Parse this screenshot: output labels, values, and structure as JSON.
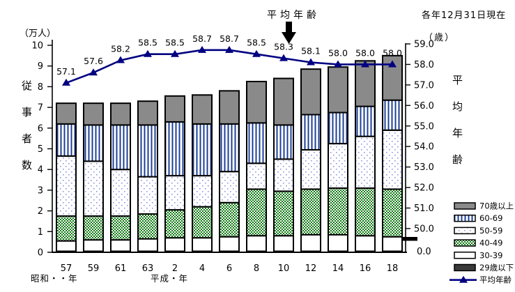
{
  "chart_data": {
    "type": "bar",
    "subtype": "stacked-bar-with-line",
    "title": "",
    "categories": [
      "57",
      "59",
      "61",
      "63",
      "2",
      "4",
      "6",
      "8",
      "10",
      "12",
      "14",
      "16",
      "18"
    ],
    "era_labels": {
      "showa": "昭和・・年",
      "heisei": "平成・年"
    },
    "series": [
      {
        "name": "29歳以下",
        "style": "dark",
        "values": [
          0.05,
          0.05,
          0.05,
          0.05,
          0.05,
          0.05,
          0.05,
          0.05,
          0.05,
          0.05,
          0.05,
          0.05,
          0.05
        ]
      },
      {
        "name": "30-39",
        "style": "white",
        "values": [
          0.5,
          0.55,
          0.55,
          0.6,
          0.65,
          0.65,
          0.7,
          0.75,
          0.75,
          0.8,
          0.8,
          0.75,
          0.7
        ]
      },
      {
        "name": "40-49",
        "style": "green",
        "values": [
          1.2,
          1.15,
          1.15,
          1.2,
          1.35,
          1.5,
          1.65,
          2.25,
          2.15,
          2.2,
          2.25,
          2.3,
          2.3
        ]
      },
      {
        "name": "50-59",
        "style": "dots",
        "values": [
          2.9,
          2.65,
          2.25,
          1.8,
          1.65,
          1.5,
          1.5,
          1.25,
          1.55,
          1.9,
          2.15,
          2.5,
          2.85
        ]
      },
      {
        "name": "60-69",
        "style": "stripes",
        "values": [
          1.55,
          1.75,
          2.15,
          2.5,
          2.6,
          2.5,
          2.3,
          1.95,
          1.65,
          1.7,
          1.5,
          1.45,
          1.45
        ]
      },
      {
        "name": "70歳以上",
        "style": "gray",
        "values": [
          1.0,
          1.05,
          1.05,
          1.15,
          1.25,
          1.4,
          1.6,
          2.0,
          2.25,
          2.2,
          2.2,
          2.2,
          2.15
        ]
      }
    ],
    "line_series": {
      "name": "平均年齢",
      "values": [
        57.1,
        57.6,
        58.2,
        58.5,
        58.5,
        58.7,
        58.7,
        58.5,
        58.3,
        58.1,
        58.0,
        58.0,
        58.0
      ]
    },
    "left_axis": {
      "unit": "（万人）",
      "title": "従事者数",
      "min": 0,
      "max": 10,
      "tick_step": 1
    },
    "right_axis": {
      "unit": "（歳）",
      "title": "平均年齢",
      "ticks": [
        "59.0",
        "58.0",
        "57.0",
        "56.0",
        "55.0",
        "54.0",
        "53.0",
        "52.0",
        "51.0",
        "50.0"
      ],
      "break_label": "0.0"
    },
    "annotations": {
      "line_callout": "平均年齢",
      "date_note": "各年12月31日現在"
    },
    "legend": [
      {
        "label": "70歳以上",
        "style": "gray"
      },
      {
        "label": "60-69",
        "style": "stripes"
      },
      {
        "label": "50-59",
        "style": "dots"
      },
      {
        "label": "40-49",
        "style": "green"
      },
      {
        "label": "30-39",
        "style": "white"
      },
      {
        "label": "29歳以下",
        "style": "dark"
      },
      {
        "label": "平均年齢",
        "style": "line"
      }
    ],
    "colors": {
      "line": "#000080",
      "gray": "#8a8a8a",
      "stripe": "#1c3f94",
      "dot": "#8f95dd",
      "green": "#0e7a12",
      "dark": "#3a3a3a",
      "border": "#000000"
    }
  }
}
